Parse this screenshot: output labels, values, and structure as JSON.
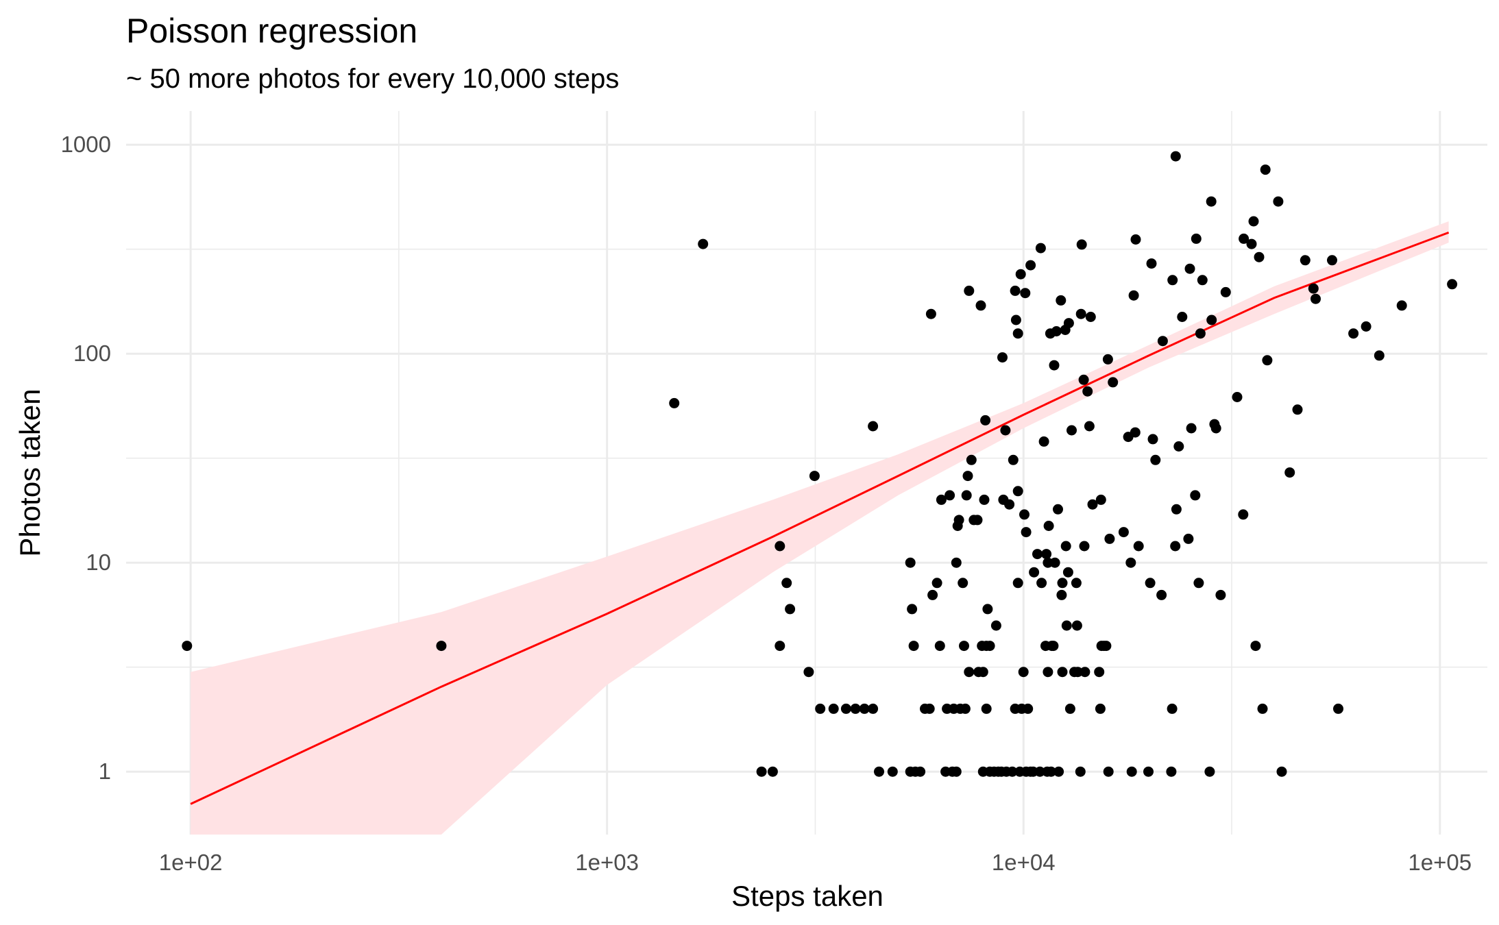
{
  "chart_data": {
    "type": "scatter",
    "title": "Poisson regression",
    "subtitle": "~ 50 more photos for every 10,000 steps",
    "xlabel": "Steps taken",
    "ylabel": "Photos taken",
    "x_scale": "log10",
    "y_scale": "log10",
    "xlim": [
      70,
      130000
    ],
    "ylim": [
      0.5,
      1450
    ],
    "x_ticks": [
      {
        "value": 100,
        "label": "1e+02"
      },
      {
        "value": 1000,
        "label": "1e+03"
      },
      {
        "value": 10000,
        "label": "1e+04"
      },
      {
        "value": 100000,
        "label": "1e+05"
      }
    ],
    "y_ticks": [
      {
        "value": 1,
        "label": "1"
      },
      {
        "value": 10,
        "label": "10"
      },
      {
        "value": 100,
        "label": "100"
      },
      {
        "value": 1000,
        "label": "1000"
      }
    ],
    "grid": true,
    "colors": {
      "points": "#000000",
      "fit_line": "#ff0000",
      "ribbon": "#ffe2e4",
      "grid": "#ebebeb"
    },
    "fit": {
      "x": [
        100,
        400,
        1000,
        2500,
        5000,
        10000,
        20000,
        40000,
        105000
      ],
      "y": [
        0.7,
        2.55,
        5.7,
        13.3,
        26,
        51,
        98,
        185,
        380
      ],
      "lower": [
        0.14,
        0.5,
        2.6,
        9.0,
        21,
        44,
        86,
        155,
        340
      ],
      "upper": [
        3.0,
        5.8,
        10.7,
        20,
        33,
        58,
        110,
        210,
        430
      ]
    },
    "points": [
      [
        98,
        4
      ],
      [
        400,
        4
      ],
      [
        1450,
        58
      ],
      [
        1700,
        335
      ],
      [
        2350,
        1
      ],
      [
        2500,
        1
      ],
      [
        2600,
        12
      ],
      [
        2600,
        4
      ],
      [
        2700,
        8
      ],
      [
        2750,
        6
      ],
      [
        3050,
        3
      ],
      [
        3150,
        26
      ],
      [
        3250,
        2
      ],
      [
        3500,
        2
      ],
      [
        3750,
        2
      ],
      [
        3950,
        2
      ],
      [
        4150,
        2
      ],
      [
        4350,
        2
      ],
      [
        4350,
        45
      ],
      [
        4500,
        1
      ],
      [
        4850,
        1
      ],
      [
        5350,
        10
      ],
      [
        5400,
        6
      ],
      [
        5350,
        1
      ],
      [
        5450,
        4
      ],
      [
        5500,
        1
      ],
      [
        5650,
        1
      ],
      [
        5800,
        2
      ],
      [
        5950,
        2
      ],
      [
        6000,
        155
      ],
      [
        6050,
        7
      ],
      [
        6200,
        8
      ],
      [
        6300,
        4
      ],
      [
        6350,
        20
      ],
      [
        6500,
        1
      ],
      [
        6550,
        2
      ],
      [
        6650,
        21
      ],
      [
        6750,
        1
      ],
      [
        6800,
        2
      ],
      [
        6900,
        1
      ],
      [
        6900,
        10
      ],
      [
        6950,
        15
      ],
      [
        7000,
        16
      ],
      [
        7050,
        2
      ],
      [
        7150,
        8
      ],
      [
        7200,
        4
      ],
      [
        7250,
        2
      ],
      [
        7300,
        21
      ],
      [
        7350,
        26
      ],
      [
        7400,
        3
      ],
      [
        7400,
        200
      ],
      [
        7500,
        31
      ],
      [
        7600,
        16
      ],
      [
        7750,
        16
      ],
      [
        7800,
        3
      ],
      [
        7900,
        170
      ],
      [
        7950,
        4
      ],
      [
        8000,
        3
      ],
      [
        8000,
        1
      ],
      [
        8050,
        20
      ],
      [
        8100,
        48
      ],
      [
        8150,
        2
      ],
      [
        8150,
        4
      ],
      [
        8200,
        6
      ],
      [
        8300,
        4
      ],
      [
        8300,
        1
      ],
      [
        8500,
        1
      ],
      [
        8600,
        5
      ],
      [
        8700,
        1
      ],
      [
        8850,
        1
      ],
      [
        8900,
        96
      ],
      [
        8950,
        20
      ],
      [
        9050,
        43
      ],
      [
        9100,
        1
      ],
      [
        9250,
        19
      ],
      [
        9400,
        1
      ],
      [
        9450,
        31
      ],
      [
        9550,
        2
      ],
      [
        9550,
        200
      ],
      [
        9600,
        145
      ],
      [
        9700,
        8
      ],
      [
        9700,
        22
      ],
      [
        9700,
        125
      ],
      [
        9800,
        1
      ],
      [
        9850,
        240
      ],
      [
        9900,
        2
      ],
      [
        10000,
        3
      ],
      [
        10050,
        17
      ],
      [
        10100,
        195
      ],
      [
        10150,
        14
      ],
      [
        10150,
        1
      ],
      [
        10250,
        2
      ],
      [
        10400,
        265
      ],
      [
        10400,
        1
      ],
      [
        10550,
        1
      ],
      [
        10600,
        9
      ],
      [
        10800,
        11
      ],
      [
        10950,
        1
      ],
      [
        11050,
        8
      ],
      [
        11000,
        320
      ],
      [
        11200,
        38
      ],
      [
        11300,
        4
      ],
      [
        11350,
        11
      ],
      [
        11400,
        1
      ],
      [
        11450,
        10
      ],
      [
        11450,
        3
      ],
      [
        11500,
        15
      ],
      [
        11600,
        125
      ],
      [
        11650,
        1
      ],
      [
        11700,
        4
      ],
      [
        11800,
        4
      ],
      [
        11850,
        88
      ],
      [
        11900,
        10
      ],
      [
        12000,
        128
      ],
      [
        12100,
        18
      ],
      [
        12150,
        1
      ],
      [
        12300,
        180
      ],
      [
        12350,
        7
      ],
      [
        12400,
        8
      ],
      [
        12400,
        3
      ],
      [
        12600,
        130
      ],
      [
        12650,
        12
      ],
      [
        12700,
        5
      ],
      [
        12800,
        9
      ],
      [
        12850,
        140
      ],
      [
        12950,
        2
      ],
      [
        13050,
        43
      ],
      [
        13250,
        3
      ],
      [
        13400,
        8
      ],
      [
        13450,
        5
      ],
      [
        13500,
        3
      ],
      [
        13700,
        1
      ],
      [
        13750,
        155
      ],
      [
        13800,
        333
      ],
      [
        13950,
        75
      ],
      [
        14000,
        12
      ],
      [
        14050,
        3
      ],
      [
        14250,
        66
      ],
      [
        14400,
        45
      ],
      [
        14500,
        150
      ],
      [
        14650,
        19
      ],
      [
        15200,
        3
      ],
      [
        15300,
        2
      ],
      [
        15350,
        20
      ],
      [
        15400,
        4
      ],
      [
        15600,
        4
      ],
      [
        15800,
        4
      ],
      [
        15950,
        94
      ],
      [
        16000,
        1
      ],
      [
        16100,
        13
      ],
      [
        16400,
        73
      ],
      [
        17400,
        14
      ],
      [
        17850,
        40
      ],
      [
        18100,
        10
      ],
      [
        18200,
        1
      ],
      [
        18400,
        190
      ],
      [
        18550,
        42
      ],
      [
        18600,
        352
      ],
      [
        18900,
        12
      ],
      [
        19950,
        1
      ],
      [
        20150,
        8
      ],
      [
        20300,
        270
      ],
      [
        20450,
        39
      ],
      [
        20750,
        31
      ],
      [
        21450,
        7
      ],
      [
        21600,
        115
      ],
      [
        22650,
        1
      ],
      [
        22750,
        2
      ],
      [
        22800,
        225
      ],
      [
        23150,
        12
      ],
      [
        23300,
        18
      ],
      [
        23600,
        36
      ],
      [
        24050,
        150
      ],
      [
        24900,
        13
      ],
      [
        25100,
        255
      ],
      [
        25300,
        44
      ],
      [
        25850,
        21
      ],
      [
        26000,
        355
      ],
      [
        26350,
        8
      ],
      [
        26600,
        125
      ],
      [
        26900,
        225
      ],
      [
        28000,
        1
      ],
      [
        28250,
        535
      ],
      [
        28300,
        145
      ],
      [
        28750,
        46
      ],
      [
        29000,
        44
      ],
      [
        29750,
        7
      ],
      [
        30600,
        197
      ],
      [
        32600,
        62
      ],
      [
        33700,
        17
      ],
      [
        33800,
        355
      ],
      [
        35300,
        335
      ],
      [
        35700,
        430
      ],
      [
        36100,
        4
      ],
      [
        36800,
        290
      ],
      [
        37500,
        2
      ],
      [
        38100,
        760
      ],
      [
        38500,
        93
      ],
      [
        40900,
        535
      ],
      [
        41700,
        1
      ],
      [
        43600,
        27
      ],
      [
        45500,
        54
      ],
      [
        47500,
        280
      ],
      [
        49700,
        205
      ],
      [
        50300,
        183
      ],
      [
        55100,
        280
      ],
      [
        57000,
        2
      ],
      [
        62000,
        125
      ],
      [
        66500,
        135
      ],
      [
        71500,
        98
      ],
      [
        81000,
        170
      ],
      [
        107000,
        215
      ],
      [
        23200,
        880
      ]
    ]
  }
}
